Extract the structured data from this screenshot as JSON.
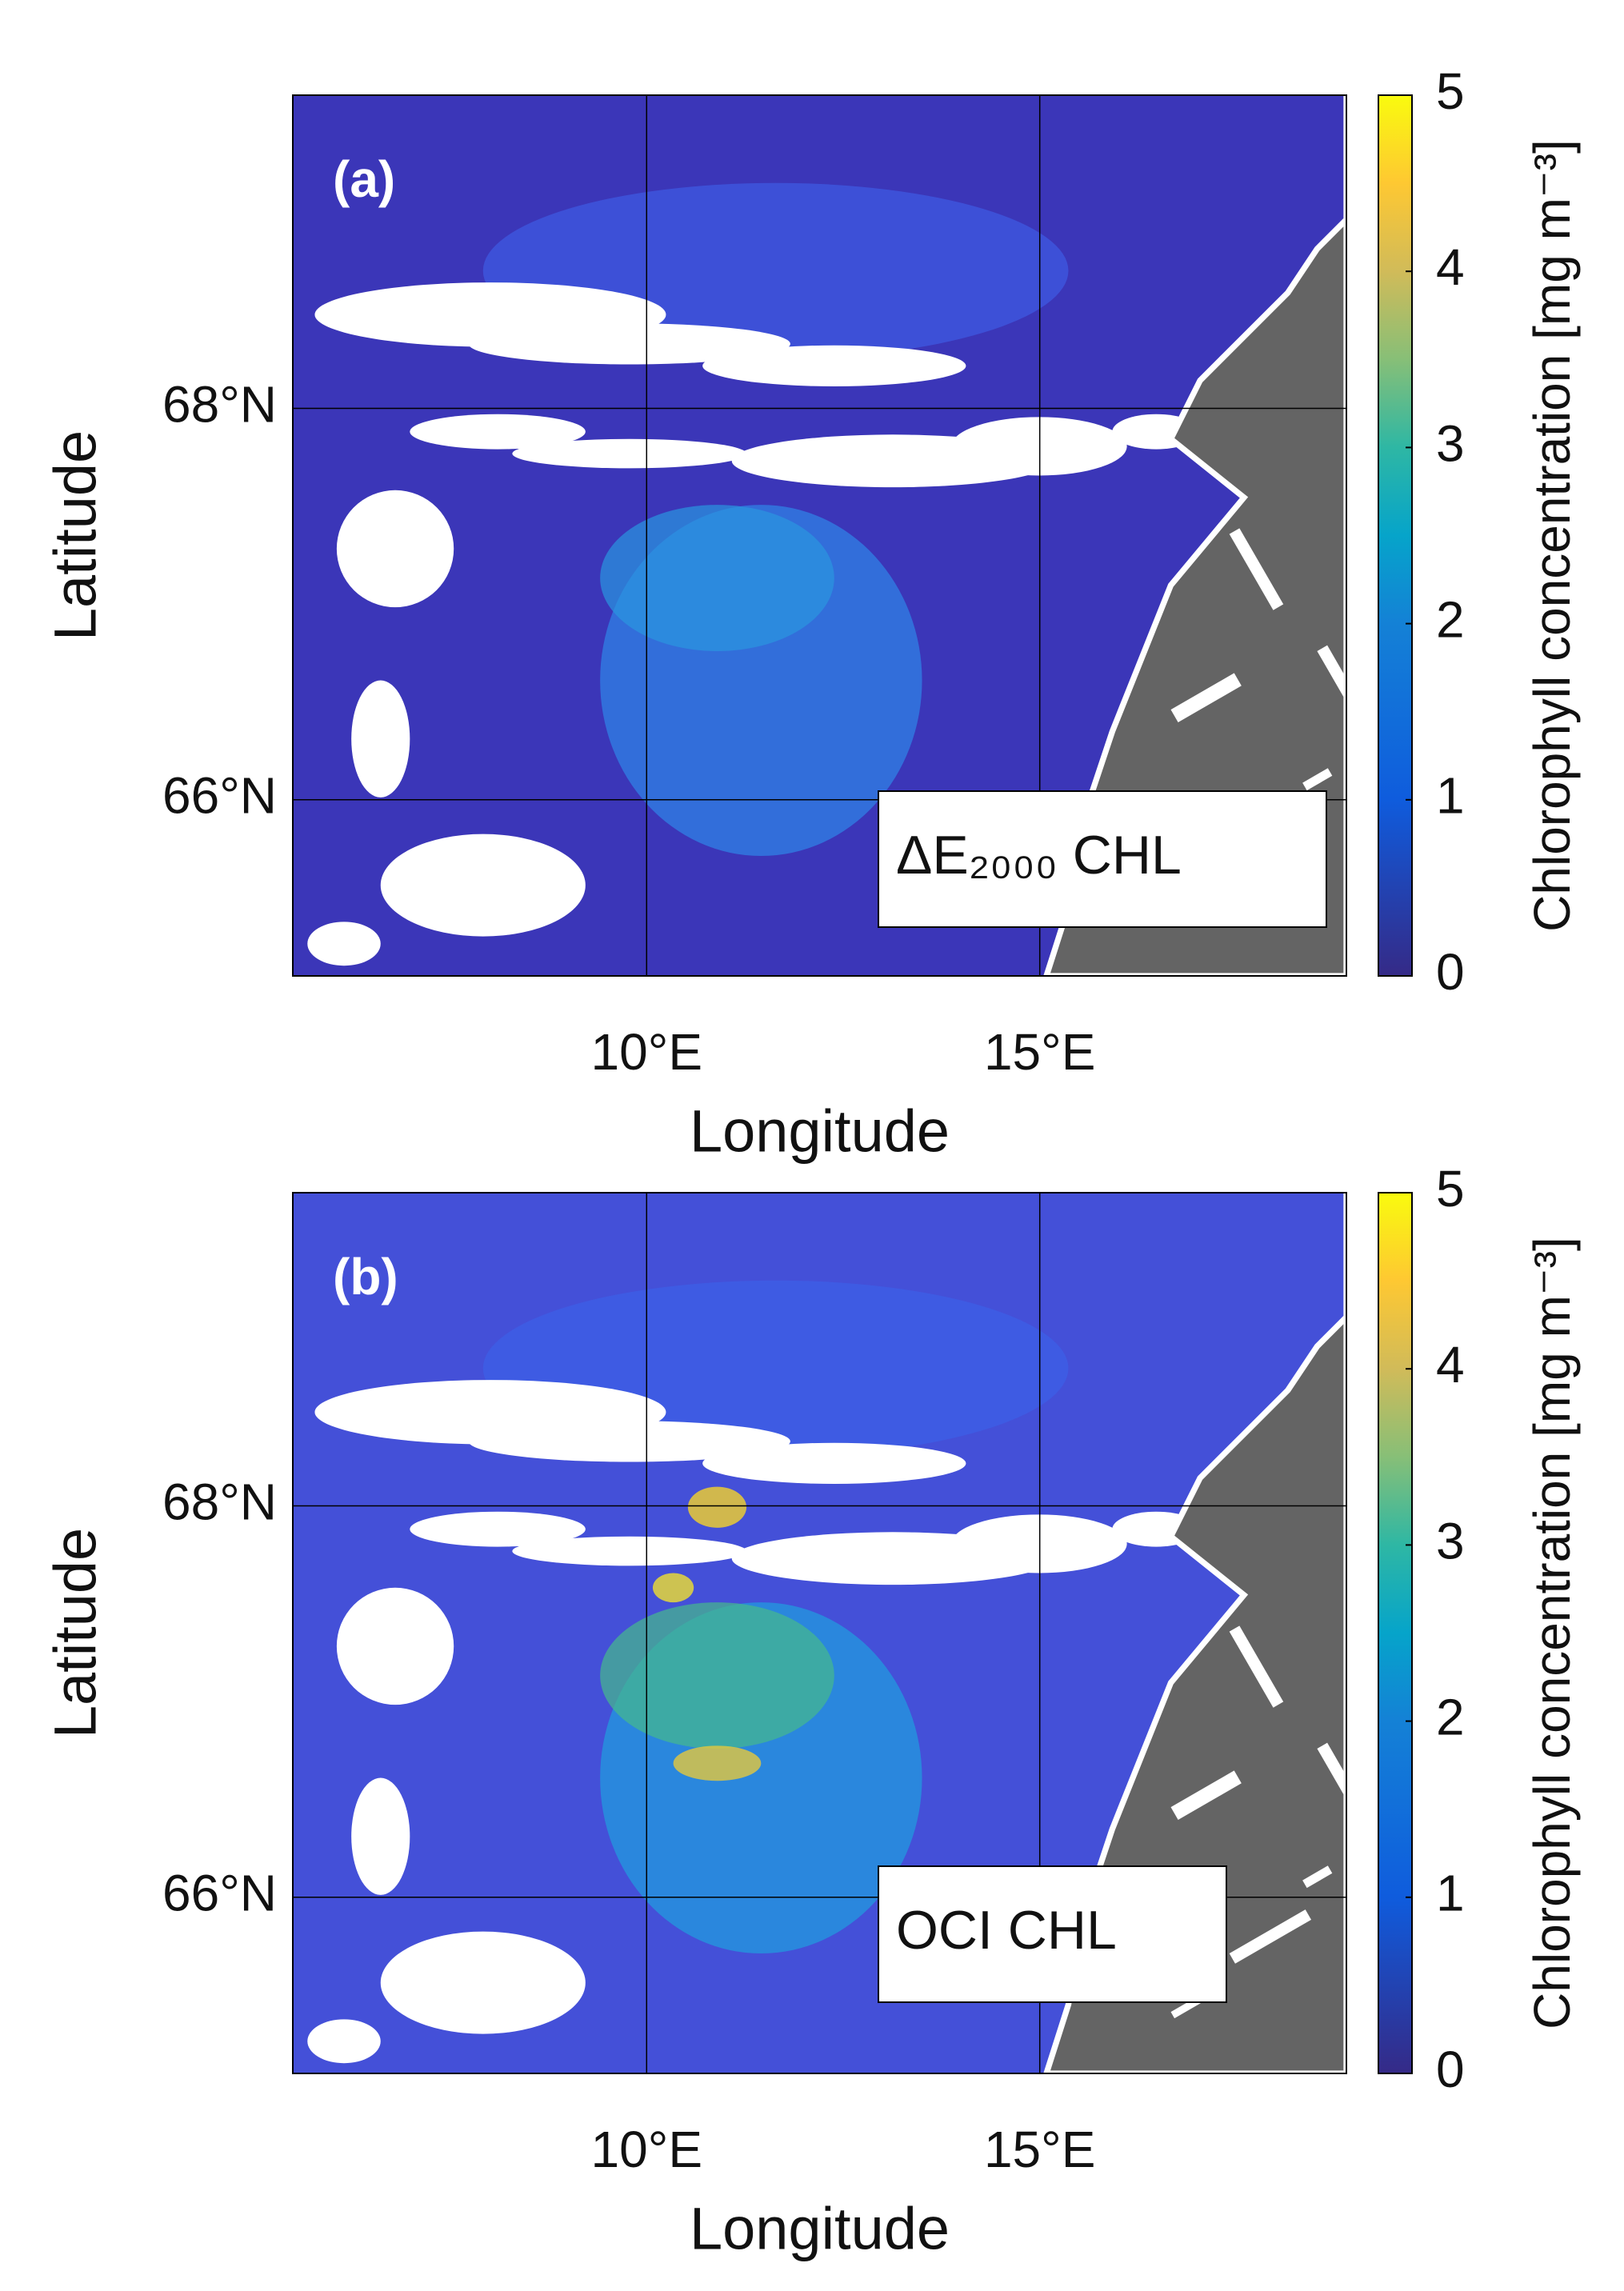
{
  "chart_data": [
    {
      "type": "map",
      "title": "(a)",
      "annotation": "ΔE₂₀₀₀ CHL",
      "xlabel": "Longitude",
      "ylabel": "Latitude",
      "xlim": [
        5.5,
        18.9
      ],
      "ylim": [
        65.1,
        69.6
      ],
      "xticks": [
        {
          "value": 10,
          "label": "10°E"
        },
        {
          "value": 15,
          "label": "15°E"
        }
      ],
      "yticks": [
        {
          "value": 66,
          "label": "66°N"
        },
        {
          "value": 68,
          "label": "68°N"
        }
      ],
      "grid": true,
      "colorbar_label": "Chlorophyll concentration [mg m⁻³]",
      "clim": [
        0,
        5
      ],
      "cbar_ticks": [
        0,
        1,
        2,
        3,
        4,
        5
      ]
    },
    {
      "type": "map",
      "title": "(b)",
      "annotation": "OCI CHL",
      "xlabel": "Longitude",
      "ylabel": "Latitude",
      "xlim": [
        5.5,
        18.9
      ],
      "ylim": [
        65.1,
        69.6
      ],
      "xticks": [
        {
          "value": 10,
          "label": "10°E"
        },
        {
          "value": 15,
          "label": "15°E"
        }
      ],
      "yticks": [
        {
          "value": 66,
          "label": "66°N"
        },
        {
          "value": 68,
          "label": "68°N"
        }
      ],
      "grid": true,
      "colorbar_label": "Chlorophyll concentration [mg m⁻³]",
      "clim": [
        0,
        5
      ],
      "cbar_ticks": [
        0,
        1,
        2,
        3,
        4,
        5
      ]
    }
  ]
}
